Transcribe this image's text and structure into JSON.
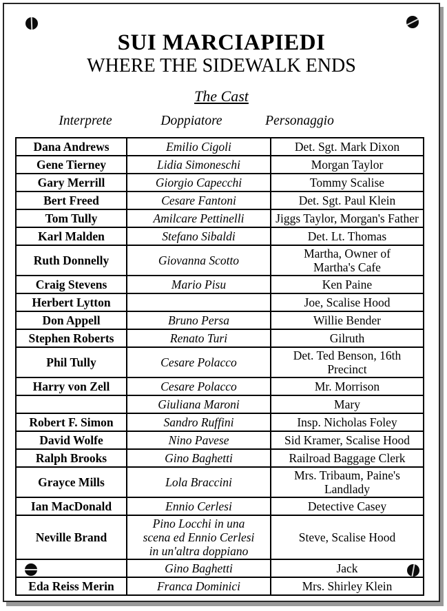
{
  "header": {
    "title": "SUI MARCIAPIEDI",
    "subtitle": "WHERE THE SIDEWALK ENDS",
    "section_heading": "The Cast"
  },
  "columns": {
    "interprete": "Interprete",
    "doppiatore": "Doppiatore",
    "personaggio": "Personaggio"
  },
  "cast": [
    {
      "interprete": "Dana Andrews",
      "doppiatore": "Emilio Cigoli",
      "personaggio": "Det. Sgt. Mark Dixon"
    },
    {
      "interprete": "Gene Tierney",
      "doppiatore": "Lidia Simoneschi",
      "personaggio": "Morgan Taylor"
    },
    {
      "interprete": "Gary Merrill",
      "doppiatore": "Giorgio Capecchi",
      "personaggio": "Tommy Scalise"
    },
    {
      "interprete": "Bert Freed",
      "doppiatore": "Cesare Fantoni",
      "personaggio": "Det. Sgt. Paul Klein"
    },
    {
      "interprete": "Tom Tully",
      "doppiatore": "Amilcare Pettinelli",
      "personaggio": "Jiggs Taylor, Morgan's Father"
    },
    {
      "interprete": "Karl Malden",
      "doppiatore": "Stefano Sibaldi",
      "personaggio": "Det. Lt. Thomas"
    },
    {
      "interprete": "Ruth Donnelly",
      "doppiatore": "Giovanna Scotto",
      "personaggio": "Martha, Owner of Martha's Cafe",
      "personaggio_lines": 2
    },
    {
      "interprete": "Craig Stevens",
      "doppiatore": "Mario Pisu",
      "personaggio": "Ken Paine"
    },
    {
      "interprete": "Herbert Lytton",
      "doppiatore": "",
      "personaggio": "Joe, Scalise Hood"
    },
    {
      "interprete": "Don Appell",
      "doppiatore": "Bruno Persa",
      "personaggio": "Willie Bender"
    },
    {
      "interprete": "Stephen Roberts",
      "doppiatore": "Renato Turi",
      "personaggio": "Gilruth"
    },
    {
      "interprete": "Phil Tully",
      "doppiatore": "Cesare Polacco",
      "personaggio": "Det. Ted Benson, 16th Precinct"
    },
    {
      "interprete": "Harry von Zell",
      "doppiatore": "Cesare Polacco",
      "personaggio": "Mr. Morrison"
    },
    {
      "interprete": "",
      "doppiatore": "Giuliana Maroni",
      "personaggio": "Mary"
    },
    {
      "interprete": "Robert F. Simon",
      "doppiatore": "Sandro Ruffini",
      "personaggio": "Insp. Nicholas Foley"
    },
    {
      "interprete": "David Wolfe",
      "doppiatore": "Nino Pavese",
      "personaggio": "Sid Kramer, Scalise Hood"
    },
    {
      "interprete": "Ralph Brooks",
      "doppiatore": "Gino Baghetti",
      "personaggio": "Railroad Baggage Clerk"
    },
    {
      "interprete": "Grayce Mills",
      "doppiatore": "Lola Braccini",
      "personaggio": "Mrs. Tribaum, Paine's Landlady",
      "personaggio_lines": 2
    },
    {
      "interprete": "Ian MacDonald",
      "doppiatore": "Ennio Cerlesi",
      "personaggio": "Detective Casey"
    },
    {
      "interprete": "Neville Brand",
      "doppiatore": "Pino Locchi in una scena ed Ennio Cerlesi in un'altra doppiano",
      "personaggio": "Steve, Scalise Hood",
      "doppiatore_lines": 4
    },
    {
      "interprete": "",
      "doppiatore": "Gino Baghetti",
      "personaggio": "Jack"
    },
    {
      "interprete": "Eda Reiss Merin",
      "doppiatore": "Franca Dominici",
      "personaggio": "Mrs. Shirley Klein"
    }
  ],
  "decorations": {
    "screws": [
      "top-left",
      "top-right",
      "bottom-left",
      "bottom-right"
    ]
  },
  "colors": {
    "page_background": "#ffffff",
    "text": "#000000",
    "table_border": "#000000",
    "page_border": "#262626",
    "page_shadow": "#9a9a9a",
    "screw": "#0c0c0c"
  }
}
